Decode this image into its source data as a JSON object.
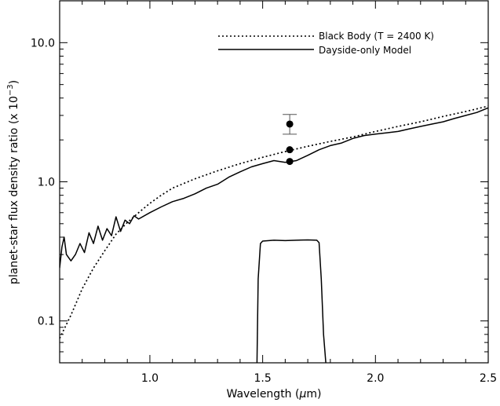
{
  "chart_data": {
    "type": "line",
    "title": "",
    "xlabel": "Wavelength (μm)",
    "ylabel": "planet-star flux density ratio (x 10⁻³)",
    "ylabel_pre": "planet-star flux density ratio (x 10",
    "ylabel_exp": "−3",
    "ylabel_post": ")",
    "xlabel_pre": "Wavelength (",
    "xlabel_mu": "μ",
    "xlabel_post": "m)",
    "xlim": [
      0.6,
      2.5
    ],
    "ylim": [
      0.05,
      20
    ],
    "yscale": "log",
    "grid": false,
    "legend_position": "top-right",
    "x_ticks": [
      {
        "value": 1.0,
        "label": "1.0"
      },
      {
        "value": 1.5,
        "label": "1.5"
      },
      {
        "value": 2.0,
        "label": "2.0"
      },
      {
        "value": 2.5,
        "label": "2.5"
      }
    ],
    "y_ticks": [
      {
        "value": 0.1,
        "label": "0.1"
      },
      {
        "value": 1.0,
        "label": "1.0"
      },
      {
        "value": 10.0,
        "label": "10.0"
      }
    ],
    "series": [
      {
        "name": "Black Body (T = 2400 K)",
        "style": "dotted",
        "x": [
          0.6,
          0.65,
          0.7,
          0.75,
          0.8,
          0.85,
          0.9,
          0.95,
          1.0,
          1.05,
          1.1,
          1.2,
          1.3,
          1.4,
          1.5,
          1.6,
          1.7,
          1.8,
          1.9,
          2.0,
          2.1,
          2.2,
          2.3,
          2.4,
          2.5
        ],
        "y": [
          0.075,
          0.11,
          0.17,
          0.24,
          0.32,
          0.42,
          0.51,
          0.6,
          0.7,
          0.8,
          0.9,
          1.05,
          1.2,
          1.35,
          1.5,
          1.65,
          1.8,
          1.95,
          2.1,
          2.3,
          2.5,
          2.7,
          2.95,
          3.2,
          3.5
        ]
      },
      {
        "name": "Dayside-only Model",
        "style": "solid",
        "x": [
          0.6,
          0.61,
          0.62,
          0.63,
          0.65,
          0.67,
          0.69,
          0.71,
          0.73,
          0.75,
          0.77,
          0.79,
          0.81,
          0.83,
          0.85,
          0.87,
          0.89,
          0.91,
          0.93,
          0.95,
          1.0,
          1.05,
          1.1,
          1.15,
          1.2,
          1.25,
          1.3,
          1.35,
          1.4,
          1.45,
          1.5,
          1.55,
          1.6,
          1.65,
          1.7,
          1.75,
          1.8,
          1.85,
          1.9,
          1.95,
          2.0,
          2.05,
          2.1,
          2.15,
          2.2,
          2.25,
          2.3,
          2.35,
          2.4,
          2.45,
          2.5
        ],
        "y": [
          0.24,
          0.34,
          0.4,
          0.3,
          0.27,
          0.3,
          0.36,
          0.31,
          0.43,
          0.36,
          0.48,
          0.38,
          0.46,
          0.41,
          0.56,
          0.44,
          0.53,
          0.5,
          0.57,
          0.54,
          0.6,
          0.66,
          0.72,
          0.76,
          0.82,
          0.9,
          0.96,
          1.08,
          1.18,
          1.28,
          1.35,
          1.42,
          1.38,
          1.42,
          1.55,
          1.7,
          1.82,
          1.9,
          2.05,
          2.15,
          2.2,
          2.25,
          2.3,
          2.4,
          2.5,
          2.6,
          2.7,
          2.85,
          3.0,
          3.15,
          3.4
        ]
      },
      {
        "name": "",
        "style": "solid",
        "x": [
          1.475,
          1.48,
          1.49,
          1.5,
          1.55,
          1.6,
          1.65,
          1.7,
          1.74,
          1.75,
          1.76,
          1.77,
          1.78
        ],
        "y": [
          0.05,
          0.2,
          0.36,
          0.375,
          0.38,
          0.378,
          0.38,
          0.382,
          0.38,
          0.365,
          0.2,
          0.08,
          0.05
        ]
      }
    ],
    "points": [
      {
        "x": 1.62,
        "y": 2.6,
        "yerr_low": 2.2,
        "yerr_high": 3.05
      },
      {
        "x": 1.62,
        "y": 1.7
      },
      {
        "x": 1.62,
        "y": 1.4
      }
    ]
  }
}
